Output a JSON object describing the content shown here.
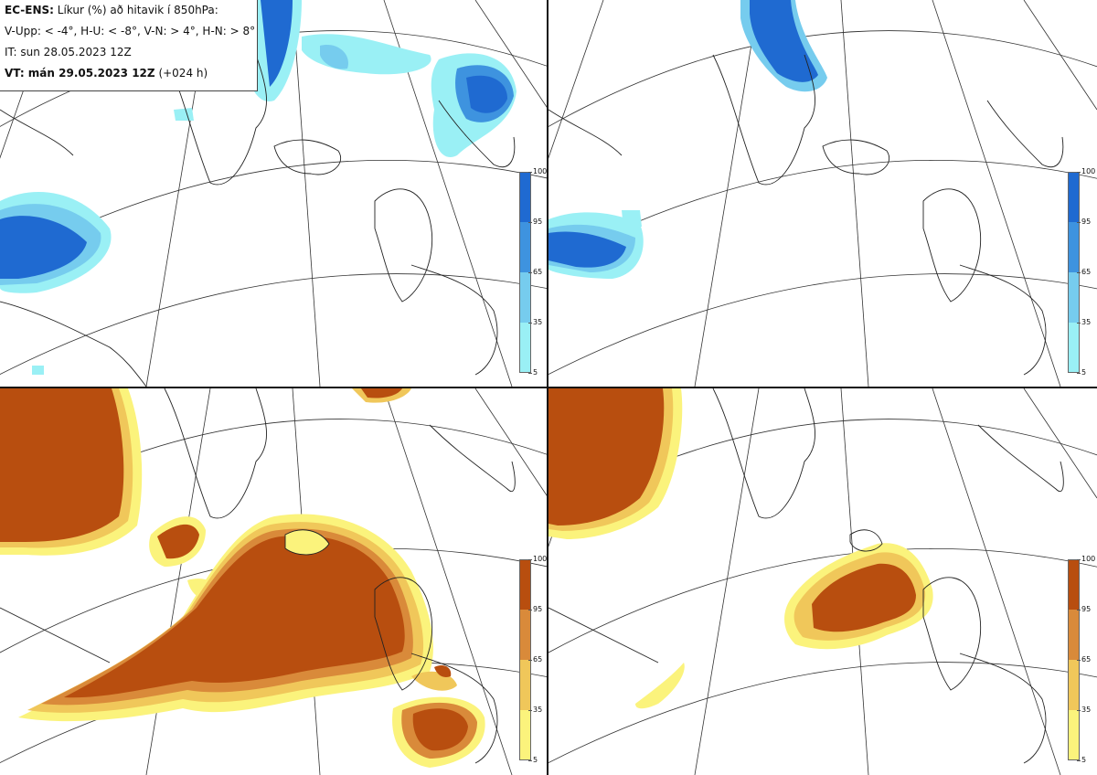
{
  "header": {
    "model": "EC-ENS:",
    "title_rest": "Líkur (%) að hitavik í 850hPa:",
    "legend_line": "V-Upp: < -4°, H-U: < -8°, V-N: > 4°, H-N: > 8°",
    "init_time": "IT: sun 28.05.2023 12Z",
    "valid_prefix": "VT: mán 29.05.2023 12Z",
    "valid_suffix": "(+024 h)"
  },
  "panels": [
    {
      "id": "V-Upp",
      "palette": "cold"
    },
    {
      "id": "H-U",
      "palette": "cold"
    },
    {
      "id": "V-N",
      "palette": "warm"
    },
    {
      "id": "H-N",
      "palette": "warm"
    }
  ],
  "colorbars": {
    "cold": {
      "ticks": [
        "100",
        "95",
        "65",
        "35",
        "5"
      ],
      "colors": [
        "#1f6ad1",
        "#3e93df",
        "#76ccee",
        "#9af0f5"
      ]
    },
    "warm": {
      "ticks": [
        "100",
        "95",
        "65",
        "35",
        "5"
      ],
      "colors": [
        "#b84e0f",
        "#d98a3a",
        "#f0c75a",
        "#fbf37c"
      ]
    }
  }
}
